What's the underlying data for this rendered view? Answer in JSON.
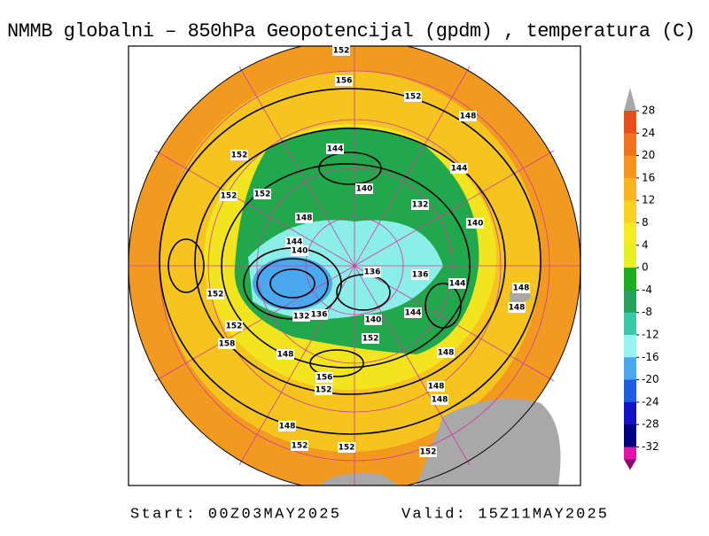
{
  "title": "NMMB globalni – 850hPa Geopotencijal (gpdm) , temperatura (C)",
  "colorbar": {
    "ticks": [
      28,
      24,
      20,
      16,
      12,
      8,
      4,
      0,
      -4,
      -8,
      -12,
      -16,
      -20,
      -24,
      -28,
      -32
    ],
    "colors": [
      "#e84e1c",
      "#f2711e",
      "#f7961f",
      "#f9b51c",
      "#f8d31d",
      "#f4ec1e",
      "#e6f01e",
      "#1faa1f",
      "#27a15c",
      "#3cc8a8",
      "#96f4f0",
      "#4aa8ee",
      "#1d5ee0",
      "#1212c8",
      "#00007e"
    ],
    "over_color": "#a8a8a8",
    "under_color": "#8c0a72",
    "last_band_color": "#e414a8"
  },
  "contour_labels": [
    "152",
    "156",
    "152",
    "148",
    "152",
    "144",
    "144",
    "152",
    "152",
    "140",
    "132",
    "148",
    "140",
    "144",
    "140",
    "136",
    "136",
    "144",
    "148",
    "152",
    "148",
    "132",
    "136",
    "140",
    "144",
    "152",
    "152",
    "158",
    "148",
    "148",
    "156",
    "152",
    "148",
    "148",
    "148",
    "152",
    "152",
    "152"
  ],
  "footer": {
    "start": "Start: 00Z03MAY2025",
    "valid": "Valid: 15Z11MAY2025"
  }
}
